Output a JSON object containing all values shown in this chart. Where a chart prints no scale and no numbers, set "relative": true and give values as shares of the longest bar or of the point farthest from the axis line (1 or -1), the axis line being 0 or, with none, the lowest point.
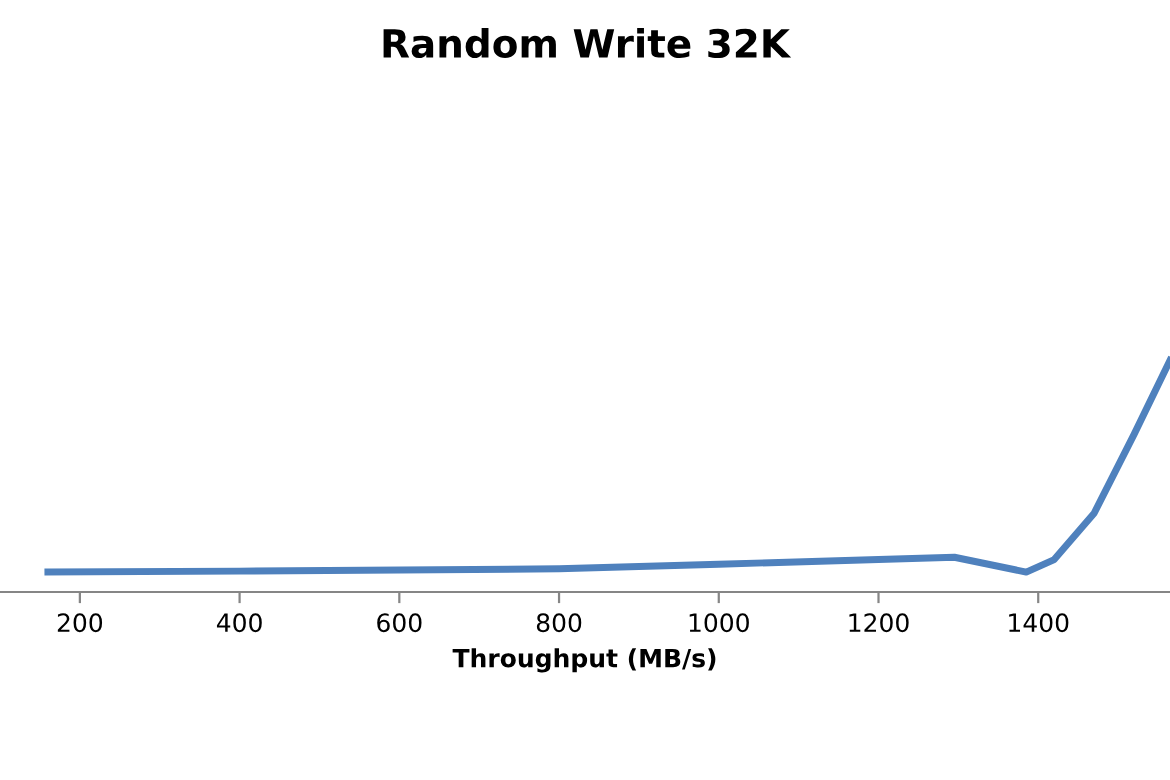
{
  "chart_data": {
    "type": "line",
    "title": "Random Write 32K",
    "xlabel": "Throughput (MB/s)",
    "relative": true,
    "xlim": [
      100,
      1565
    ],
    "xticks": [
      200,
      400,
      600,
      800,
      1000,
      1200,
      1400
    ],
    "series": [
      {
        "color": "#4f81bd",
        "x": [
          160,
          400,
          800,
          1000,
          1200,
          1295,
          1385,
          1420,
          1470,
          1520,
          1565
        ],
        "values": [
          0.086,
          0.09,
          0.1,
          0.12,
          0.14,
          0.15,
          0.086,
          0.14,
          0.34,
          0.68,
          1
        ]
      }
    ]
  }
}
